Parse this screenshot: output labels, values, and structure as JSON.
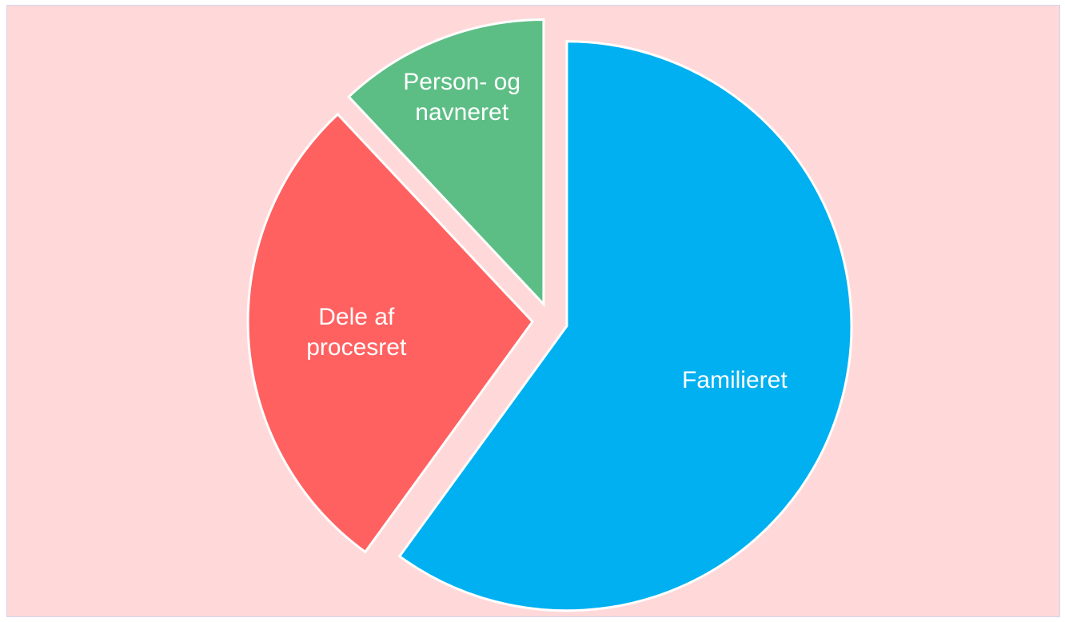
{
  "chart_data": {
    "type": "pie",
    "categories": [
      "Familieret",
      "Dele af procesret",
      "Person- og navneret"
    ],
    "values": [
      60,
      28,
      12
    ],
    "colors": [
      "#00B0F0",
      "#FF6161",
      "#5DBE85"
    ],
    "exploded": true
  }
}
